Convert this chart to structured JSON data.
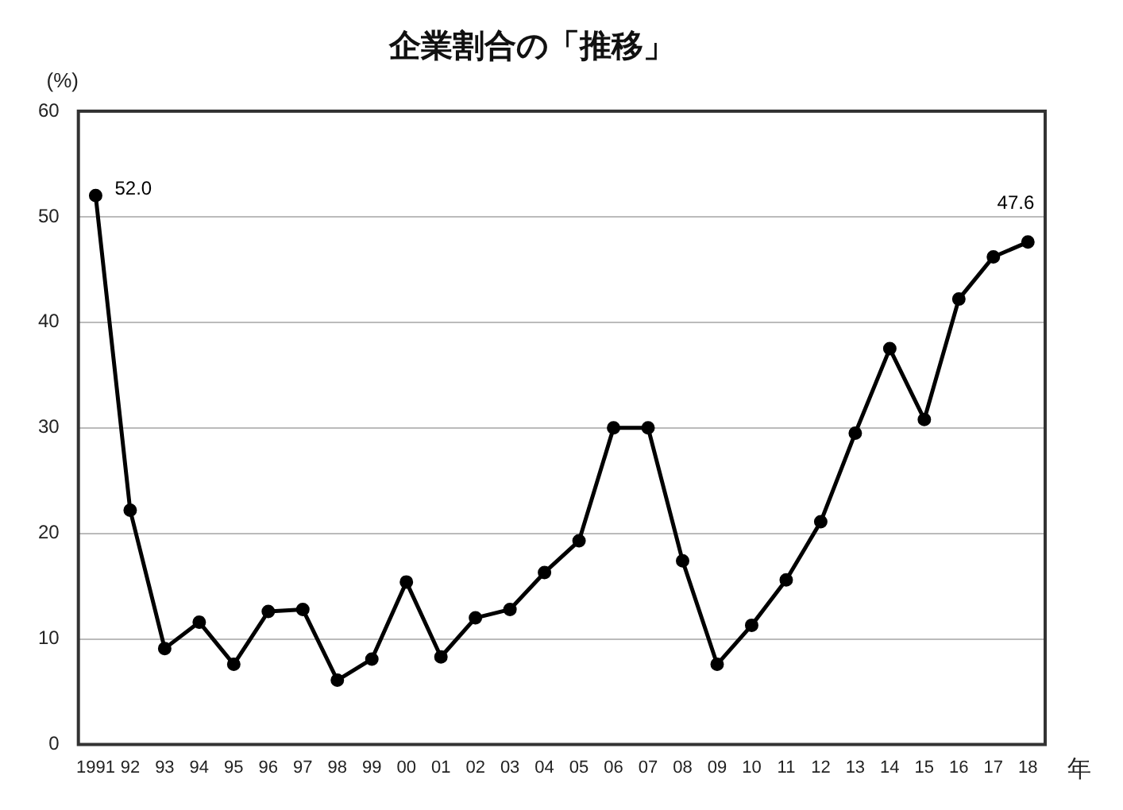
{
  "chart_data": {
    "type": "line",
    "title": "企業割合の「推移」",
    "ylabel": "(%)",
    "xlabel": "年",
    "categories": [
      "1991",
      "92",
      "93",
      "94",
      "95",
      "96",
      "97",
      "98",
      "99",
      "00",
      "01",
      "02",
      "03",
      "04",
      "05",
      "06",
      "07",
      "08",
      "09",
      "10",
      "11",
      "12",
      "13",
      "14",
      "15",
      "16",
      "17",
      "18"
    ],
    "series": [
      {
        "color": "#000000",
        "values": [
          52.0,
          22.2,
          9.1,
          11.6,
          7.6,
          12.6,
          12.8,
          6.1,
          8.1,
          15.4,
          8.3,
          12.0,
          12.8,
          16.3,
          19.3,
          30.0,
          30.0,
          17.4,
          7.6,
          11.3,
          15.6,
          21.1,
          29.5,
          37.5,
          30.8,
          42.2,
          46.2,
          47.6
        ],
        "value_labels": [
          "52.0",
          null,
          null,
          null,
          null,
          null,
          null,
          null,
          null,
          null,
          null,
          null,
          null,
          null,
          null,
          null,
          null,
          null,
          null,
          null,
          null,
          null,
          null,
          null,
          null,
          null,
          null,
          "47.6"
        ]
      }
    ],
    "ylim": [
      0,
      60
    ],
    "yticks": [
      0,
      10,
      20,
      30,
      40,
      50,
      60
    ],
    "grid": "y",
    "legend": false,
    "marker": "circle",
    "line_style": "solid"
  }
}
